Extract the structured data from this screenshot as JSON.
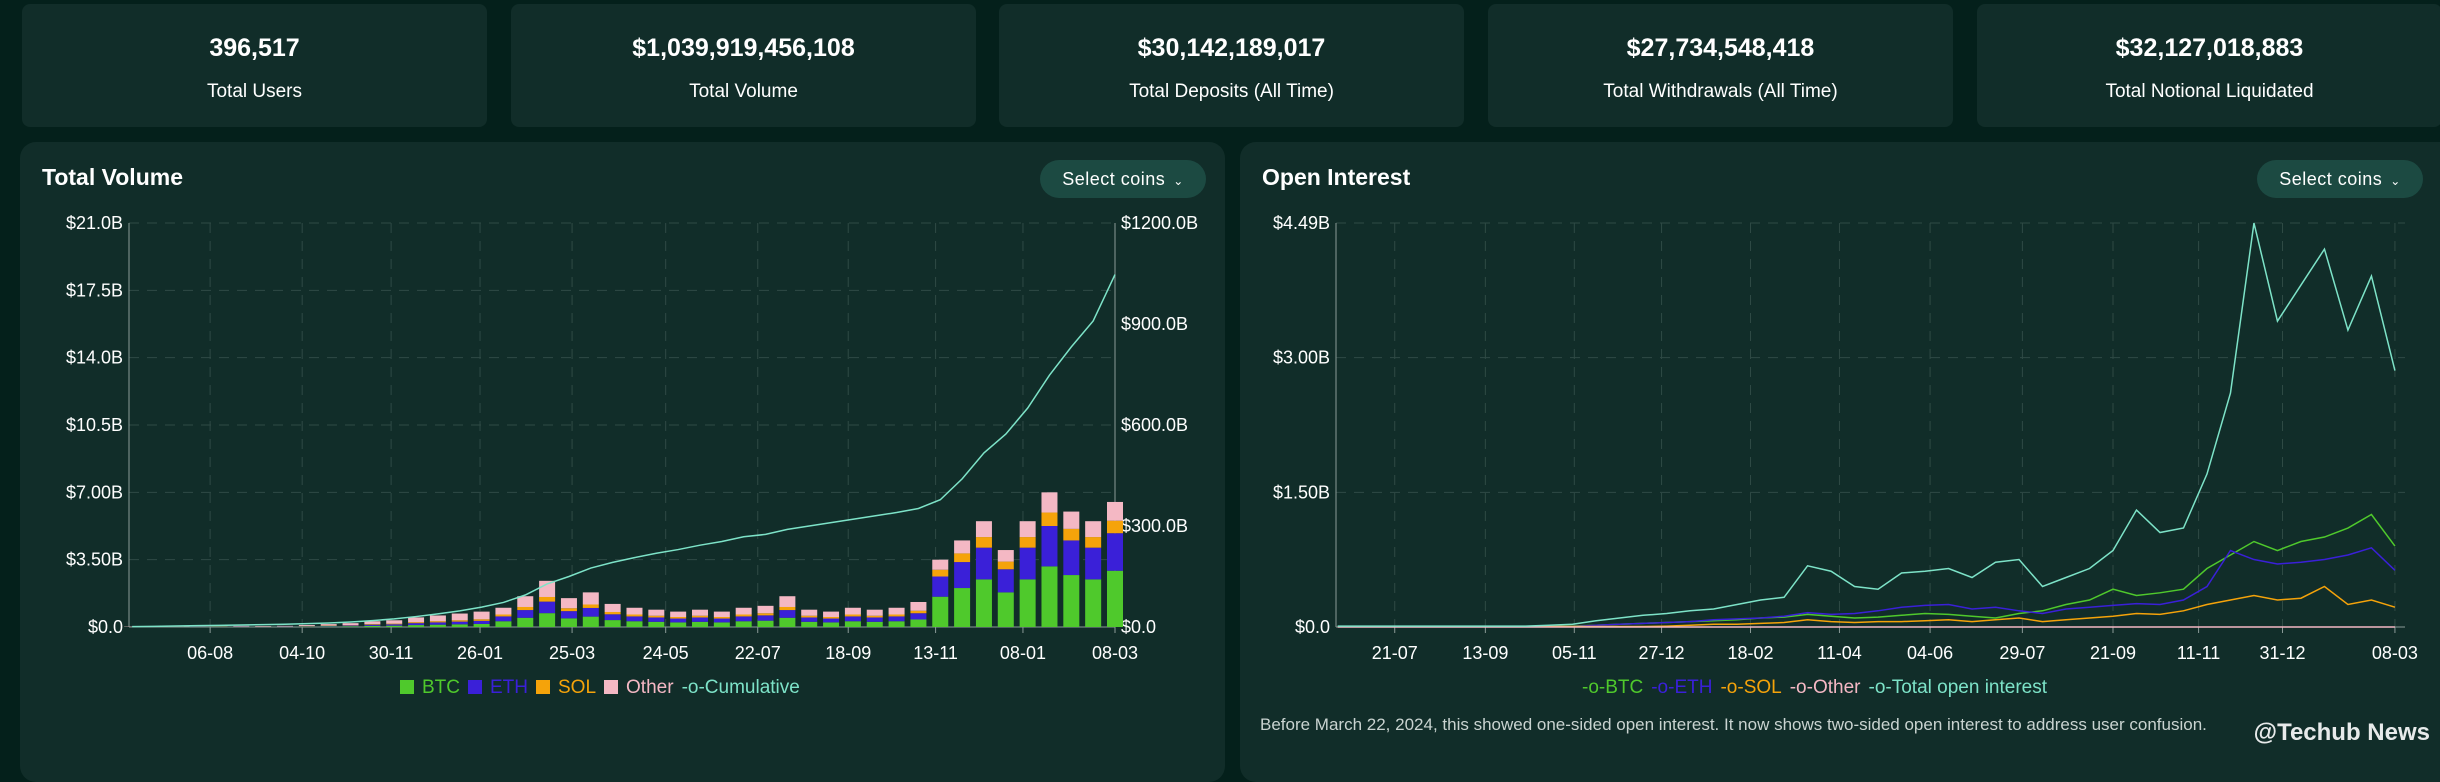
{
  "stats": [
    {
      "value": "396,517",
      "label": "Total Users"
    },
    {
      "value": "$1,039,919,456,108",
      "label": "Total Volume"
    },
    {
      "value": "$30,142,189,017",
      "label": "Total Deposits (All Time)"
    },
    {
      "value": "$27,734,548,418",
      "label": "Total Withdrawals (All Time)"
    },
    {
      "value": "$32,127,018,883",
      "label": "Total Notional Liquidated"
    }
  ],
  "select_label": "Select coins",
  "colors": {
    "BTC": "#4fc92c",
    "ETH": "#3a20d8",
    "SOL": "#f5a30a",
    "Other": "#f4b8c4",
    "Cumulative": "#7de3c8",
    "Total open interest": "#7de3c8"
  },
  "footnote": "Before March 22, 2024, this showed one-sided open interest. It now shows two-sided open interest to address user confusion.",
  "watermark": "@Techub News",
  "chart_data": [
    {
      "type": "bar",
      "title": "Total Volume",
      "stacked": true,
      "x": [
        "2023-06-17",
        "2023-07-01",
        "2023-07-15",
        "2023-07-29",
        "2023-08-12",
        "2023-08-26",
        "2023-09-09",
        "2023-09-23",
        "2023-10-07",
        "2023-10-21",
        "2023-11-04",
        "2023-11-18",
        "2023-12-02",
        "2023-12-16",
        "2023-12-30",
        "2024-01-13",
        "2024-01-27",
        "2024-02-10",
        "2024-02-24",
        "2024-03-09",
        "2024-03-23",
        "2024-04-06",
        "2024-04-20",
        "2024-05-04",
        "2024-05-18",
        "2024-06-01",
        "2024-06-15",
        "2024-06-29",
        "2024-07-13",
        "2024-07-27",
        "2024-08-10",
        "2024-08-24",
        "2024-09-07",
        "2024-09-21",
        "2024-10-05",
        "2024-10-19",
        "2024-11-02",
        "2024-11-16",
        "2024-11-30",
        "2024-12-14",
        "2024-12-28",
        "2025-01-11",
        "2025-01-25",
        "2025-02-08",
        "2025-02-22",
        "2025-03-08"
      ],
      "x_ticks": [
        "06-08",
        "04-10",
        "30-11",
        "26-01",
        "25-03",
        "24-05",
        "22-07",
        "18-09",
        "13-11",
        "08-01",
        "08-03"
      ],
      "x_tick_dates": [
        "2023-08-06",
        "2023-10-04",
        "2023-11-30",
        "2024-01-26",
        "2024-03-25",
        "2024-05-24",
        "2024-07-22",
        "2024-09-18",
        "2024-11-13",
        "2025-01-08",
        "2025-03-08"
      ],
      "xlim": [
        "2023-06-15",
        "2025-03-08"
      ],
      "y_ticks": [
        "$0.0",
        "$3.50B",
        "$7.00B",
        "$10.5B",
        "$14.0B",
        "$17.5B",
        "$21.0B"
      ],
      "ylim": [
        0,
        21
      ],
      "y2_ticks": [
        "$0.0",
        "$300.0B",
        "$600.0B",
        "$900.0B",
        "$1200.0B"
      ],
      "y2lim": [
        0,
        1200
      ],
      "unit": "B",
      "grid": true,
      "legend": "bottom",
      "series": [
        {
          "name": "BTC",
          "values": [
            0.006,
            0.01,
            0.01,
            0.016,
            0.02,
            0.012,
            0.01,
            0.012,
            0.02,
            0.03,
            0.04,
            0.06,
            0.07,
            0.1,
            0.12,
            0.14,
            0.16,
            0.3,
            0.48,
            0.72,
            0.45,
            0.54,
            0.36,
            0.3,
            0.27,
            0.24,
            0.27,
            0.24,
            0.3,
            0.33,
            0.48,
            0.27,
            0.24,
            0.3,
            0.27,
            0.3,
            0.39,
            1.575,
            2.025,
            2.475,
            1.8,
            2.475,
            3.15,
            2.7,
            2.475,
            2.925
          ]
        },
        {
          "name": "ETH",
          "values": [
            0.006,
            0.01,
            0.01,
            0.016,
            0.02,
            0.012,
            0.01,
            0.012,
            0.02,
            0.03,
            0.04,
            0.06,
            0.07,
            0.1,
            0.12,
            0.14,
            0.16,
            0.25,
            0.4,
            0.6,
            0.375,
            0.45,
            0.3,
            0.25,
            0.225,
            0.2,
            0.225,
            0.2,
            0.25,
            0.275,
            0.4,
            0.225,
            0.2,
            0.25,
            0.225,
            0.25,
            0.325,
            1.05,
            1.35,
            1.65,
            1.2,
            1.65,
            2.1,
            1.8,
            1.65,
            1.95
          ]
        },
        {
          "name": "SOL",
          "values": [
            0.003,
            0.005,
            0.005,
            0.008,
            0.01,
            0.006,
            0.005,
            0.006,
            0.01,
            0.015,
            0.02,
            0.03,
            0.035,
            0.05,
            0.06,
            0.07,
            0.08,
            0.1,
            0.16,
            0.24,
            0.15,
            0.18,
            0.12,
            0.1,
            0.09,
            0.08,
            0.09,
            0.08,
            0.1,
            0.11,
            0.16,
            0.09,
            0.08,
            0.1,
            0.09,
            0.1,
            0.13,
            0.35,
            0.45,
            0.55,
            0.4,
            0.55,
            0.7,
            0.6,
            0.55,
            0.65
          ]
        },
        {
          "name": "Other",
          "values": [
            0.015,
            0.025,
            0.025,
            0.04,
            0.05,
            0.03,
            0.025,
            0.03,
            0.05,
            0.075,
            0.1,
            0.15,
            0.175,
            0.25,
            0.3,
            0.35,
            0.4,
            0.35,
            0.56,
            0.84,
            0.525,
            0.63,
            0.42,
            0.35,
            0.315,
            0.28,
            0.315,
            0.28,
            0.35,
            0.385,
            0.56,
            0.315,
            0.28,
            0.35,
            0.315,
            0.35,
            0.455,
            0.525,
            0.675,
            0.825,
            0.6,
            0.825,
            1.05,
            0.9,
            0.825,
            0.975
          ]
        },
        {
          "name": "Cumulative",
          "axis": "right",
          "type": "line",
          "values": [
            1,
            2,
            3,
            4,
            5,
            6,
            7,
            8,
            10,
            12,
            15,
            19,
            24,
            31,
            39,
            48,
            59,
            73,
            95,
            128,
            150,
            175,
            192,
            206,
            219,
            230,
            243,
            254,
            268,
            275,
            290,
            300,
            310,
            320,
            330,
            340,
            352,
            378,
            440,
            517,
            573,
            650,
            748,
            832,
            909,
            1047
          ]
        }
      ]
    },
    {
      "type": "line",
      "title": "Open Interest",
      "x": [
        "2023-06-17",
        "2023-07-01",
        "2023-07-15",
        "2023-07-29",
        "2023-08-12",
        "2023-08-26",
        "2023-09-09",
        "2023-09-23",
        "2023-10-07",
        "2023-10-21",
        "2023-11-04",
        "2023-11-18",
        "2023-12-02",
        "2023-12-16",
        "2023-12-30",
        "2024-01-13",
        "2024-01-27",
        "2024-02-10",
        "2024-02-24",
        "2024-03-09",
        "2024-03-23",
        "2024-04-06",
        "2024-04-20",
        "2024-05-04",
        "2024-05-18",
        "2024-06-01",
        "2024-06-15",
        "2024-06-29",
        "2024-07-13",
        "2024-07-27",
        "2024-08-10",
        "2024-08-24",
        "2024-09-07",
        "2024-09-21",
        "2024-10-05",
        "2024-10-19",
        "2024-11-02",
        "2024-11-16",
        "2024-11-30",
        "2024-12-14",
        "2024-12-28",
        "2025-01-11",
        "2025-01-25",
        "2025-02-08",
        "2025-02-22",
        "2025-03-08"
      ],
      "x_ticks": [
        "21-07",
        "13-09",
        "05-11",
        "27-12",
        "18-02",
        "11-04",
        "04-06",
        "29-07",
        "21-09",
        "11-11",
        "31-12",
        "08-03"
      ],
      "x_tick_dates": [
        "2023-07-21",
        "2023-09-13",
        "2023-11-05",
        "2023-12-27",
        "2024-02-18",
        "2024-04-11",
        "2024-06-04",
        "2024-07-29",
        "2024-09-21",
        "2024-11-11",
        "2024-12-31",
        "2025-03-08"
      ],
      "xlim": [
        "2023-06-16",
        "2025-03-14"
      ],
      "y_ticks": [
        "$0.0",
        "$1.50B",
        "$3.00B",
        "$4.49B"
      ],
      "ylim": [
        0,
        4.49
      ],
      "unit": "B",
      "grid": true,
      "legend": "bottom",
      "series": [
        {
          "name": "BTC",
          "values": [
            0.005,
            0.005,
            0.005,
            0.005,
            0.005,
            0.005,
            0.005,
            0.005,
            0.008,
            0.01,
            0.01,
            0.02,
            0.03,
            0.04,
            0.05,
            0.06,
            0.07,
            0.08,
            0.1,
            0.11,
            0.14,
            0.12,
            0.1,
            0.11,
            0.13,
            0.15,
            0.14,
            0.12,
            0.1,
            0.15,
            0.18,
            0.25,
            0.3,
            0.42,
            0.35,
            0.38,
            0.42,
            0.65,
            0.8,
            0.95,
            0.85,
            0.95,
            1.0,
            1.1,
            1.25,
            0.9
          ]
        },
        {
          "name": "ETH",
          "values": [
            0.005,
            0.005,
            0.005,
            0.005,
            0.005,
            0.005,
            0.005,
            0.005,
            0.005,
            0.005,
            0.005,
            0.02,
            0.03,
            0.04,
            0.05,
            0.06,
            0.08,
            0.09,
            0.1,
            0.12,
            0.16,
            0.14,
            0.15,
            0.18,
            0.22,
            0.24,
            0.25,
            0.2,
            0.22,
            0.18,
            0.15,
            0.2,
            0.22,
            0.24,
            0.26,
            0.25,
            0.3,
            0.45,
            0.85,
            0.75,
            0.7,
            0.72,
            0.75,
            0.8,
            0.88,
            0.63
          ]
        },
        {
          "name": "SOL",
          "values": [
            0.005,
            0.005,
            0.005,
            0.005,
            0.005,
            0.005,
            0.005,
            0.005,
            0.005,
            0.005,
            0.005,
            0.005,
            0.005,
            0.005,
            0.01,
            0.02,
            0.03,
            0.03,
            0.04,
            0.05,
            0.08,
            0.06,
            0.05,
            0.06,
            0.06,
            0.07,
            0.08,
            0.06,
            0.08,
            0.1,
            0.06,
            0.08,
            0.1,
            0.12,
            0.15,
            0.14,
            0.18,
            0.25,
            0.3,
            0.35,
            0.3,
            0.32,
            0.45,
            0.25,
            0.3,
            0.22
          ]
        },
        {
          "name": "Other",
          "values": [
            0,
            0,
            0,
            0,
            0,
            0,
            0,
            0,
            0,
            0,
            0,
            0,
            0,
            0,
            0,
            0,
            0,
            0,
            0,
            0,
            0,
            0,
            0,
            0,
            0,
            0,
            0,
            0,
            0,
            0,
            0,
            0,
            0,
            0,
            0,
            0,
            0,
            0,
            0,
            0,
            0,
            0,
            0,
            0,
            0,
            0
          ]
        },
        {
          "name": "Total open interest",
          "values": [
            0.01,
            0.01,
            0.01,
            0.01,
            0.01,
            0.01,
            0.01,
            0.01,
            0.01,
            0.02,
            0.03,
            0.07,
            0.1,
            0.13,
            0.15,
            0.18,
            0.2,
            0.25,
            0.3,
            0.33,
            0.68,
            0.62,
            0.45,
            0.42,
            0.6,
            0.62,
            0.65,
            0.55,
            0.72,
            0.75,
            0.45,
            0.55,
            0.65,
            0.85,
            1.3,
            1.05,
            1.1,
            1.7,
            2.6,
            4.49,
            3.4,
            3.8,
            4.2,
            3.3,
            3.9,
            2.85
          ]
        }
      ]
    }
  ]
}
